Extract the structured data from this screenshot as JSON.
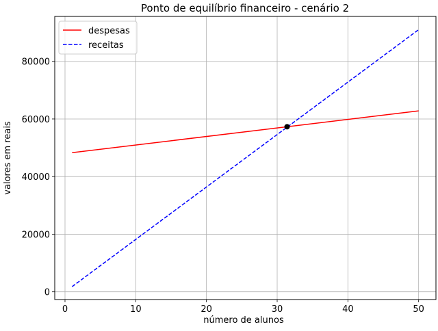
{
  "chart_data": {
    "type": "line",
    "title": "Ponto de equilíbrio financeiro - cenário 2",
    "xlabel": "número de alunos",
    "ylabel": "valores em reais",
    "xlim": [
      -1.45,
      52.45
    ],
    "ylim": [
      -2680,
      95600
    ],
    "x_ticks": [
      0,
      10,
      20,
      30,
      40,
      50
    ],
    "y_ticks": [
      0,
      20000,
      40000,
      60000,
      80000
    ],
    "grid": true,
    "legend_position": "upper-left",
    "series": [
      {
        "name": "despesas",
        "color": "#ff0000",
        "style": "solid",
        "x": [
          1,
          50
        ],
        "y": [
          48300,
          62800
        ]
      },
      {
        "name": "receitas",
        "color": "#0000ff",
        "style": "dashed",
        "x": [
          1,
          50
        ],
        "y": [
          1800,
          91000
        ]
      }
    ],
    "points": [
      {
        "x": 31.4,
        "y": 57300,
        "color": "#000000"
      }
    ]
  }
}
